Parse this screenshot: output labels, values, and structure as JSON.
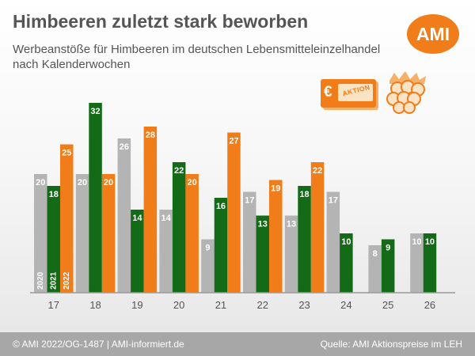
{
  "header": {
    "title": "Himbeeren zuletzt stark beworben",
    "subtitle": "Werbeanstöße für Himbeeren im deutschen Lebensmitteleinzelhandel nach Kalenderwochen"
  },
  "logo": {
    "text": "AMI"
  },
  "badge": {
    "currency_symbol": "€",
    "label": "AKTION",
    "icon": "raspberry-icon"
  },
  "footer": {
    "left": "© AMI 2022/OG-1487 | AMI-informiert.de",
    "right": "Quelle: AMI Aktionspreise im LEH"
  },
  "colors": {
    "s2020": "#b4b4b4",
    "s2021": "#136b17",
    "s2022": "#f07d19",
    "axis": "#9a9a9a",
    "text": "#555555"
  },
  "chart_data": {
    "type": "bar",
    "categories": [
      "17",
      "18",
      "19",
      "20",
      "21",
      "22",
      "23",
      "24",
      "25",
      "26"
    ],
    "series": [
      {
        "name": "2020",
        "values": [
          20,
          20,
          26,
          14,
          9,
          17,
          13,
          17,
          8,
          10
        ]
      },
      {
        "name": "2021",
        "values": [
          18,
          32,
          14,
          22,
          16,
          13,
          18,
          10,
          9,
          10
        ]
      },
      {
        "name": "2022",
        "values": [
          25,
          20,
          28,
          20,
          27,
          19,
          22,
          null,
          null,
          null
        ]
      }
    ],
    "ylim": [
      0,
      32
    ],
    "grid": false,
    "legend": "inside first group, labels rotated in bars",
    "data_labels": true
  }
}
